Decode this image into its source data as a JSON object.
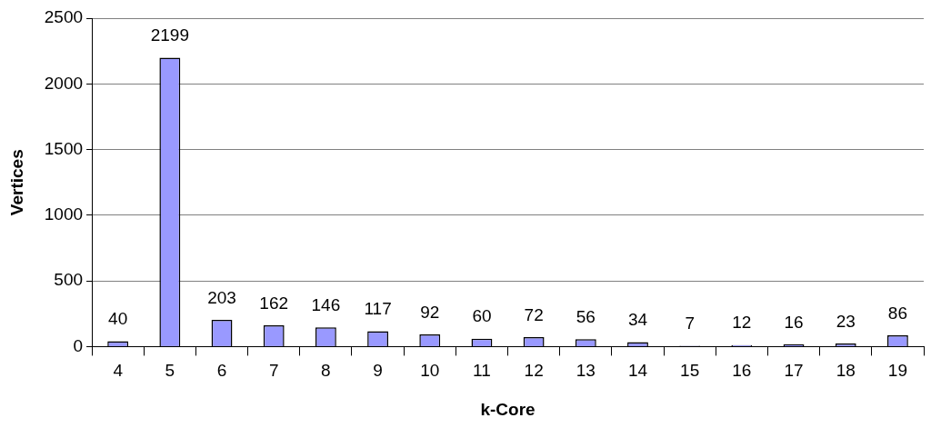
{
  "chart_data": {
    "type": "bar",
    "xlabel": "k-Core",
    "ylabel": "Vertices",
    "categories": [
      "4",
      "5",
      "6",
      "7",
      "8",
      "9",
      "10",
      "11",
      "12",
      "13",
      "14",
      "15",
      "16",
      "17",
      "18",
      "19"
    ],
    "values": [
      40,
      2199,
      203,
      162,
      146,
      117,
      92,
      60,
      72,
      56,
      34,
      7,
      12,
      16,
      23,
      86
    ],
    "color": "#9999ff",
    "ylim": [
      0,
      2500
    ],
    "yticks": [
      0,
      500,
      1000,
      1500,
      2000,
      2500
    ],
    "grid": "y",
    "data_labels": true
  }
}
